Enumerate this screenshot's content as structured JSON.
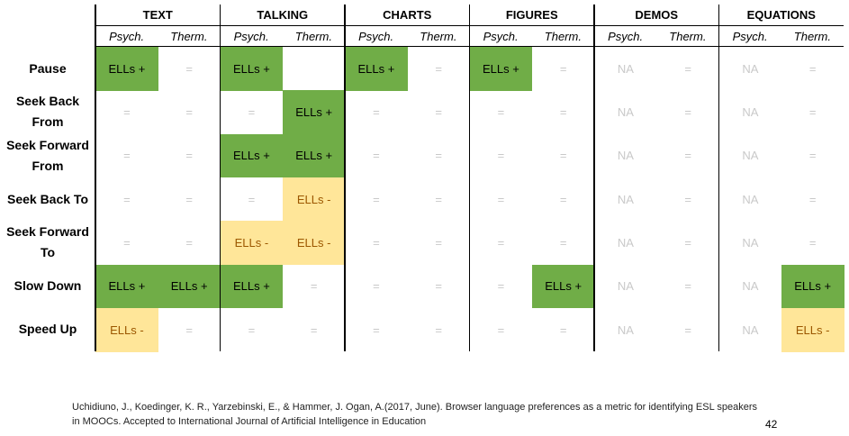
{
  "table": {
    "groups": [
      "TEXT",
      "TALKING",
      "CHARTS",
      "FIGURES",
      "DEMOS",
      "EQUATIONS"
    ],
    "subheaders": [
      "Psych.",
      "Therm.",
      "Psych.",
      "Therm.",
      "Psych.",
      "Therm.",
      "Psych.",
      "Therm.",
      "Psych.",
      "Therm.",
      "Psych.",
      "Therm."
    ],
    "rows": [
      {
        "label": "Pause",
        "cells": [
          "ELLs +",
          "=",
          "ELLs +",
          null,
          "ELLs +",
          "=",
          "ELLs +",
          "=",
          "NA",
          "=",
          "NA",
          "="
        ]
      },
      {
        "label": "Seek Back From",
        "cells": [
          "=",
          "=",
          "=",
          "ELLs +",
          "=",
          "=",
          "=",
          "=",
          "NA",
          "=",
          "NA",
          "="
        ]
      },
      {
        "label": "Seek Forward From",
        "cells": [
          "=",
          "=",
          "ELLs +",
          "ELLs +",
          "=",
          "=",
          "=",
          "=",
          "NA",
          "=",
          "NA",
          "="
        ]
      },
      {
        "label": "Seek Back To",
        "cells": [
          "=",
          "=",
          "=",
          "ELLs -",
          "=",
          "=",
          "=",
          "=",
          "NA",
          "=",
          "NA",
          "="
        ]
      },
      {
        "label": "Seek Forward To",
        "cells": [
          "=",
          "=",
          "ELLs -",
          "ELLs -",
          "=",
          "=",
          "=",
          "=",
          "NA",
          "=",
          "NA",
          "="
        ]
      },
      {
        "label": "Slow Down",
        "cells": [
          "ELLs +",
          "ELLs +",
          "ELLs +",
          "=",
          "=",
          "=",
          "=",
          "ELLs +",
          "NA",
          "=",
          "NA",
          "ELLs +"
        ]
      },
      {
        "label": "Speed Up",
        "cells": [
          "ELLs -",
          "=",
          "=",
          "=",
          "=",
          "=",
          "=",
          "=",
          "NA",
          "=",
          "NA",
          "ELLs -"
        ]
      }
    ]
  },
  "citation": "Uchidiuno, J., Koedinger, K. R., Yarzebinski, E., & Hammer, J. Ogan, A.(2017, June). Browser language preferences as a metric for identifying ESL speakers in MOOCs. Accepted to International Journal of Artificial Intelligence in Education",
  "page_number": "42"
}
